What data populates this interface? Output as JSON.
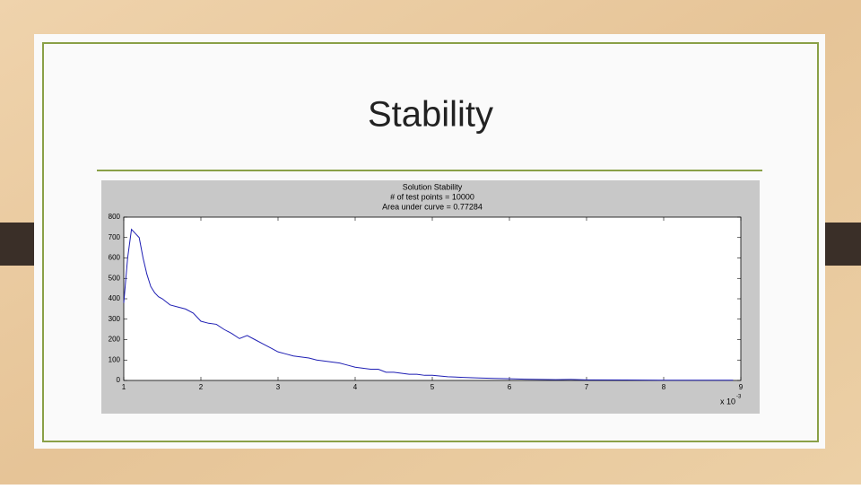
{
  "slide": {
    "title": "Stability"
  },
  "chart_data": {
    "type": "line",
    "title": "Solution Stability",
    "subtitle_lines": [
      "# of test points = 10000",
      "Area under curve = 0.77284"
    ],
    "x": [
      1.0,
      1.05,
      1.1,
      1.15,
      1.2,
      1.25,
      1.3,
      1.35,
      1.4,
      1.45,
      1.5,
      1.6,
      1.7,
      1.8,
      1.9,
      2.0,
      2.1,
      2.2,
      2.3,
      2.4,
      2.5,
      2.6,
      2.7,
      2.8,
      2.9,
      3.0,
      3.1,
      3.2,
      3.3,
      3.4,
      3.5,
      3.6,
      3.7,
      3.8,
      3.9,
      4.0,
      4.1,
      4.2,
      4.3,
      4.4,
      4.5,
      4.6,
      4.7,
      4.8,
      4.9,
      5.0,
      5.2,
      5.4,
      5.6,
      5.8,
      6.0,
      6.2,
      6.4,
      6.6,
      6.8,
      7.0,
      7.5,
      8.0,
      8.5,
      8.9
    ],
    "values": [
      380,
      600,
      740,
      720,
      700,
      600,
      520,
      460,
      430,
      410,
      400,
      370,
      360,
      350,
      330,
      290,
      280,
      275,
      250,
      230,
      205,
      220,
      200,
      180,
      160,
      140,
      130,
      120,
      115,
      110,
      100,
      95,
      90,
      85,
      75,
      65,
      60,
      55,
      55,
      40,
      40,
      35,
      30,
      30,
      25,
      25,
      18,
      15,
      12,
      10,
      8,
      6,
      5,
      4,
      5,
      3,
      2,
      1,
      1,
      1
    ],
    "color": "#1f1fb4",
    "xlim": [
      1,
      9
    ],
    "xticks": [
      1,
      2,
      3,
      4,
      5,
      6,
      7,
      8,
      9
    ],
    "ylim": [
      0,
      800
    ],
    "yticks": [
      0,
      100,
      200,
      300,
      400,
      500,
      600,
      700,
      800
    ],
    "x_scale_label": "x 10",
    "x_scale_exponent": "-3"
  }
}
